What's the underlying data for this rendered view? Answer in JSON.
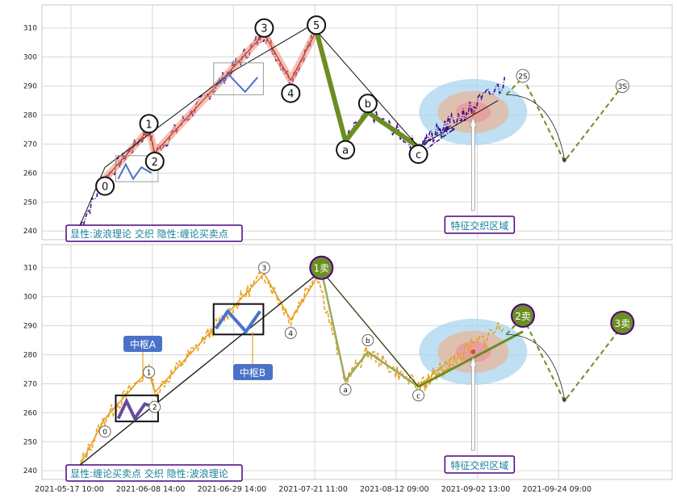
{
  "chart_data": [
    {
      "type": "line",
      "annotation_box": "显性:波浪理论 交织 隐性:缠论买卖点",
      "region_label": "特征交织区域",
      "ylim": [
        237,
        318
      ],
      "yticks": [
        240,
        250,
        260,
        270,
        280,
        290,
        300,
        310
      ],
      "grid": true,
      "wave_labels": [
        {
          "label": "0",
          "x": 7.6,
          "y": 255.5
        },
        {
          "label": "1",
          "x": 12.9,
          "y": 277
        },
        {
          "label": "2",
          "x": 13.6,
          "y": 264
        },
        {
          "label": "3",
          "x": 26.8,
          "y": 310
        },
        {
          "label": "4",
          "x": 30,
          "y": 287.5
        },
        {
          "label": "5",
          "x": 33.1,
          "y": 311
        },
        {
          "label": "a",
          "x": 36.6,
          "y": 268
        },
        {
          "label": "b",
          "x": 39.3,
          "y": 284
        },
        {
          "label": "c",
          "x": 45.4,
          "y": 266.5
        },
        {
          "label": "2S",
          "x": 58,
          "y": 293.5
        },
        {
          "label": "3S",
          "x": 70,
          "y": 290
        }
      ]
    },
    {
      "type": "line",
      "annotation_box": "显性:缠论买卖点 交织 隐性:波浪理论",
      "region_label": "特征交织区域",
      "ylim": [
        237,
        318
      ],
      "yticks": [
        240,
        250,
        260,
        270,
        280,
        290,
        300,
        310
      ],
      "grid": true,
      "zhongshu_labels": [
        "中枢A",
        "中枢B"
      ],
      "trade_labels": [
        {
          "label": "1卖",
          "x": 33.7,
          "y": 310
        },
        {
          "label": "2卖",
          "x": 58,
          "y": 293.5
        },
        {
          "label": "3卖",
          "x": 70,
          "y": 291
        }
      ],
      "wave_labels": [
        {
          "label": "0",
          "x": 7.6,
          "y": 253.5
        },
        {
          "label": "1",
          "x": 12.9,
          "y": 274
        },
        {
          "label": "2",
          "x": 13.6,
          "y": 262
        },
        {
          "label": "3",
          "x": 26.8,
          "y": 310
        },
        {
          "label": "4",
          "x": 30,
          "y": 287.5
        },
        {
          "label": "a",
          "x": 36.6,
          "y": 268
        },
        {
          "label": "b",
          "x": 39.3,
          "y": 285
        },
        {
          "label": "c",
          "x": 45.4,
          "y": 266
        }
      ]
    }
  ],
  "x_axis": {
    "ticks": [
      "2021-05-17 10:00",
      "2021-06-08 14:00",
      "2021-06-29 14:00",
      "2021-07-21 11:00",
      "2021-08-12 09:00",
      "2021-09-02 13:00",
      "2021-09-24 09:00"
    ]
  },
  "colors": {
    "price_top": "#3b0a8c",
    "price_bottom": "#e8a020",
    "wave_up": "#f08a70",
    "wave_down": "#6b8e23",
    "label_box_border": "#4b0082",
    "label_text": "#1a80a0",
    "zhongshu_fill": "#4a72c8",
    "trade_circle": "#6b8e23"
  }
}
